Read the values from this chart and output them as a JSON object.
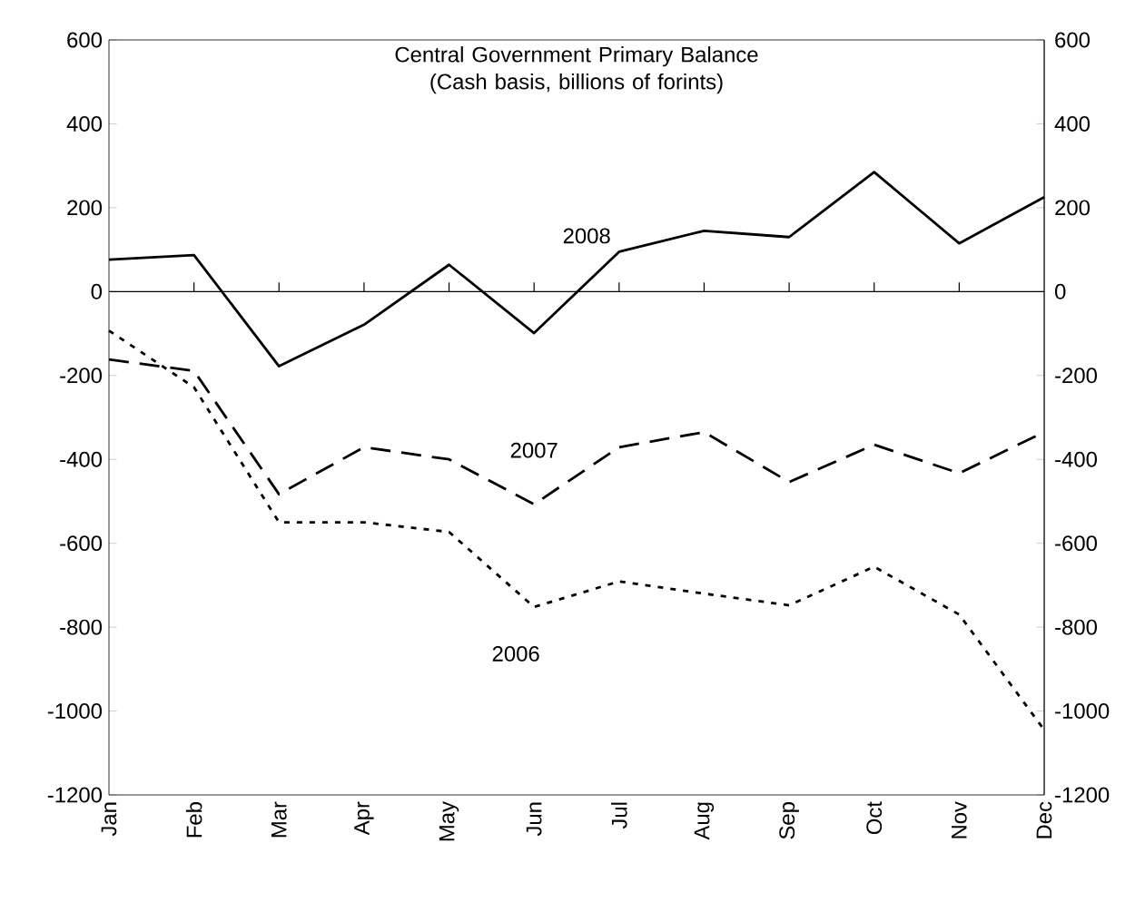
{
  "chart_data": {
    "type": "line",
    "title": "Central Government Primary Balance (Cash basis, billions of forints)",
    "categories": [
      "Jan",
      "Feb",
      "Mar",
      "Apr",
      "May",
      "Jun",
      "Jul",
      "Aug",
      "Sep",
      "Oct",
      "Nov",
      "Dec"
    ],
    "series": [
      {
        "name": "2008",
        "color": "#000000",
        "line_style": "solid",
        "values": [
          76,
          87,
          -178,
          -79,
          64,
          -99,
          95,
          145,
          130,
          285,
          115,
          225
        ]
      },
      {
        "name": "2007",
        "color": "#000000",
        "line_style": "dashed",
        "values": [
          -162,
          -189,
          -483,
          -371,
          -400,
          -507,
          -371,
          -335,
          -454,
          -365,
          -433,
          -335
        ]
      },
      {
        "name": "2006",
        "color": "#000000",
        "line_style": "dotted",
        "values": [
          -93,
          -228,
          -550,
          -550,
          -573,
          -752,
          -691,
          -720,
          -748,
          -656,
          -770,
          -1045
        ]
      }
    ],
    "ylim": [
      -1200,
      600
    ],
    "yticks": [
      -1200,
      -1000,
      -800,
      -600,
      -400,
      -200,
      0,
      200,
      400,
      600
    ],
    "y2lim": [
      -1200,
      600
    ],
    "y2ticks": [
      -1200,
      -1000,
      -800,
      -600,
      -400,
      -200,
      0,
      200,
      400,
      600
    ],
    "ref_lines": [
      {
        "axis": "y",
        "value": 0,
        "color": "#000000"
      }
    ],
    "grid": false,
    "marker": "none"
  }
}
